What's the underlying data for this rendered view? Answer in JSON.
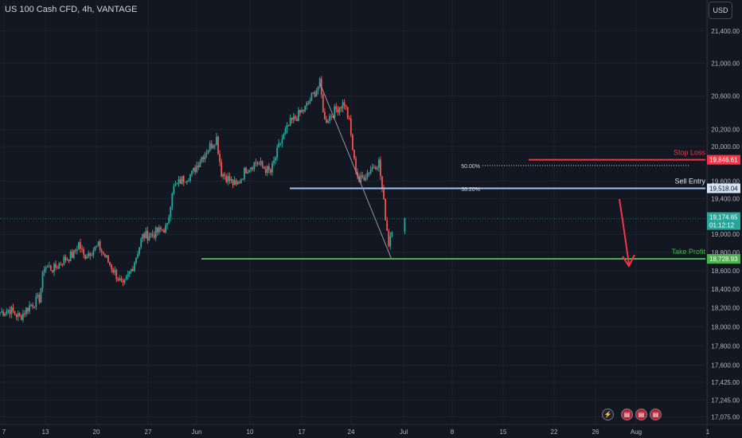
{
  "header": {
    "title": "US 100 Cash CFD, 4h, VANTAGE"
  },
  "currency_button": {
    "label": "USD"
  },
  "events": {
    "flash_icon": "lightning-icon",
    "flag_icon": "us-flag-icon",
    "flag_count": 3
  },
  "colors": {
    "background": "#131722",
    "up": "#26a69a",
    "down": "#ef5350",
    "stop": "#f23645",
    "entry": "#9fc3f0",
    "profit": "#4caf50",
    "arrow": "#f23645"
  },
  "chart_data": {
    "type": "candlestick",
    "timeframe": "4h",
    "ylim": [
      17000,
      21750
    ],
    "y_scale": "log",
    "y_ticks": [
      "21,400.00",
      "21,000.00",
      "20,600.00",
      "20,200.00",
      "20,000.00",
      "19,600.00",
      "19,400.00",
      "19,000.00",
      "18,800.00",
      "18,600.00",
      "18,400.00",
      "18,200.00",
      "18,000.00",
      "17,800.00",
      "17,600.00",
      "17,425.00",
      "17,245.00",
      "17,075.00"
    ],
    "x_ticks": [
      "7",
      "13",
      "20",
      "27",
      "Jun",
      "10",
      "17",
      "24",
      "Jul",
      "8",
      "15",
      "22",
      "26",
      "Aug",
      "1"
    ],
    "price_path": [
      {
        "date": "May 7",
        "close": 18150
      },
      {
        "date": "May 9",
        "close": 18180
      },
      {
        "date": "May 11",
        "close": 18100
      },
      {
        "date": "May 13",
        "close": 18220
      },
      {
        "date": "May 15",
        "close": 18300
      },
      {
        "date": "May 16",
        "close": 18650
      },
      {
        "date": "May 18",
        "close": 18620
      },
      {
        "date": "May 20",
        "close": 18720
      },
      {
        "date": "May 22",
        "close": 18780
      },
      {
        "date": "May 23",
        "close": 18900
      },
      {
        "date": "May 24",
        "close": 18760
      },
      {
        "date": "May 27",
        "close": 18870
      },
      {
        "date": "May 29",
        "close": 18700
      },
      {
        "date": "May 31",
        "close": 18520
      },
      {
        "date": "Jun 1",
        "close": 18420
      },
      {
        "date": "Jun 3",
        "close": 18650
      },
      {
        "date": "Jun 5",
        "close": 18980
      },
      {
        "date": "Jun 7",
        "close": 19000
      },
      {
        "date": "Jun 10",
        "close": 19080
      },
      {
        "date": "Jun 11",
        "close": 19500
      },
      {
        "date": "Jun 13",
        "close": 19620
      },
      {
        "date": "Jun 15",
        "close": 19680
      },
      {
        "date": "Jun 17",
        "close": 19880
      },
      {
        "date": "Jun 20",
        "close": 20100
      },
      {
        "date": "Jun 21",
        "close": 19700
      },
      {
        "date": "Jun 24",
        "close": 19540
      },
      {
        "date": "Jun 26",
        "close": 19740
      },
      {
        "date": "Jun 28",
        "close": 19820
      },
      {
        "date": "Jul 1",
        "close": 19700
      },
      {
        "date": "Jul 3",
        "close": 20050
      },
      {
        "date": "Jul 5",
        "close": 20280
      },
      {
        "date": "Jul 8",
        "close": 20450
      },
      {
        "date": "Jul 10",
        "close": 20650
      },
      {
        "date": "Jul 11",
        "close": 20750
      },
      {
        "date": "Jul 12",
        "close": 20300
      },
      {
        "date": "Jul 15",
        "close": 20480
      },
      {
        "date": "Jul 16",
        "close": 20520
      },
      {
        "date": "Jul 17",
        "close": 20280
      },
      {
        "date": "Jul 18",
        "close": 19820
      },
      {
        "date": "Jul 19",
        "close": 19600
      },
      {
        "date": "Jul 22",
        "close": 19780
      },
      {
        "date": "Jul 23",
        "close": 19820
      },
      {
        "date": "Jul 24",
        "close": 19350
      },
      {
        "date": "Jul 25",
        "close": 18900
      },
      {
        "date": "Jul 26",
        "close": 19174.65
      }
    ],
    "levels": [
      {
        "name": "Stop Loss",
        "price": 19846.61,
        "label": "19,846.61"
      },
      {
        "name": "Sell Entry",
        "price": 19518.04,
        "label": "19,518.04"
      },
      {
        "name": "Take Profit",
        "price": 18728.93,
        "label": "18,728.93"
      }
    ],
    "fib_levels": [
      {
        "label": "50.00%",
        "price": 19780
      },
      {
        "label": "38.20%",
        "price": 19530
      }
    ],
    "current_price": {
      "label": "19,174.65",
      "countdown": "01:12:12"
    },
    "annotations": {
      "projection_arrow": "down",
      "diagonal": "Jul 11 high to Jul 25 low"
    }
  }
}
